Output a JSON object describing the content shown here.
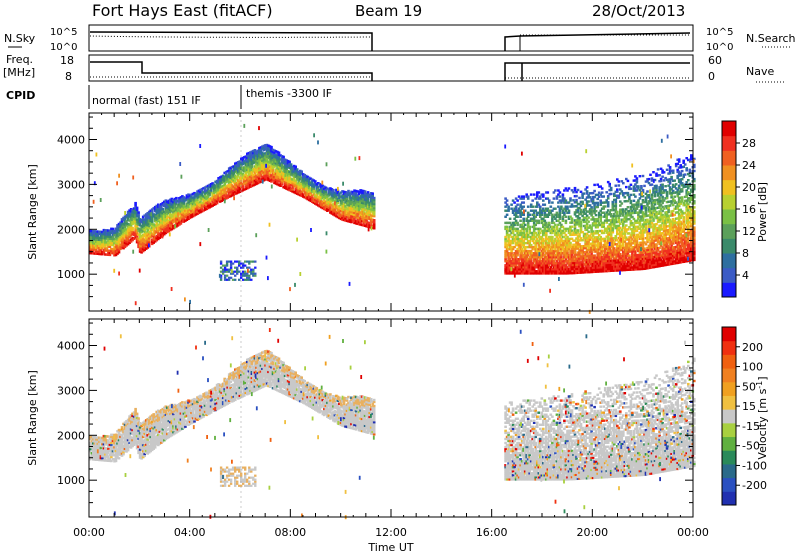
{
  "header": {
    "station": "Fort Hays East (fitACF)",
    "beam": "Beam 19",
    "date": "28/Oct/2013"
  },
  "status_panels": {
    "nsky_label": "N.Sky",
    "nsearch_label": "N.Search",
    "noise_ticks": [
      "10^5",
      "10^0"
    ],
    "noise_right_ticks": [
      "10^5",
      "10^0"
    ],
    "freq_label_1": "Freq.",
    "freq_label_2": "[MHz]",
    "freq_ticks": [
      "18",
      "8"
    ],
    "nave_label": "Nave",
    "nave_ticks": [
      "60",
      "0"
    ],
    "cpid_label": "CPID",
    "cpid_segments": [
      {
        "label": "normal (fast) 151 IF",
        "start_h": 0,
        "end_h": 6
      },
      {
        "label": "themis -3300 IF",
        "start_h": 6,
        "end_h": 11.3
      }
    ]
  },
  "axes": {
    "xlabel": "Time UT",
    "x_ticks": [
      "00:00",
      "04:00",
      "08:00",
      "12:00",
      "16:00",
      "20:00",
      "00:00"
    ],
    "y_ticks": [
      "1000",
      "2000",
      "3000",
      "4000"
    ],
    "ylabel": "Slant Range [km]"
  },
  "colorbars": {
    "power": {
      "label": "Power [dB]",
      "ticks": [
        "28",
        "24",
        "20",
        "16",
        "12",
        "8",
        "4"
      ],
      "colors": [
        "#1a1aff",
        "#3b5bc5",
        "#2e6fa0",
        "#3a8a6a",
        "#5ba05a",
        "#7ac045",
        "#b8d030",
        "#f0c020",
        "#f09020",
        "#f06020",
        "#f03020",
        "#e00000"
      ]
    },
    "velocity": {
      "label_1": "Velocity",
      "label_2": "[m s",
      "label_sup": "-1",
      "label_3": "]",
      "ticks": [
        "200",
        "100",
        "50",
        "15",
        "-15",
        "-50",
        "-100",
        "-200"
      ],
      "colors": [
        "#2030b0",
        "#2a50c0",
        "#2a6a8a",
        "#2a8a5a",
        "#60b040",
        "#a8d040",
        "#c8c8c8",
        "#f0c040",
        "#f0a020",
        "#f08020",
        "#f06010",
        "#f03010",
        "#e00000"
      ]
    }
  },
  "chart_data": [
    {
      "type": "heatmap",
      "title": "Power",
      "xlabel": "Time UT",
      "ylabel": "Slant Range [km]",
      "xlim_hours": [
        0,
        24
      ],
      "ylim_km": [
        180,
        4590
      ],
      "colorbar_label": "Power [dB]",
      "colorbar_ticks": [
        28,
        24,
        20,
        16,
        12,
        8,
        4
      ],
      "data_gaps_hours": [
        [
          11.3,
          16.5
        ]
      ],
      "echo_band_lower_edge_km": [
        {
          "t": 0.0,
          "km": 1450
        },
        {
          "t": 1.0,
          "km": 1400
        },
        {
          "t": 1.8,
          "km": 1800
        },
        {
          "t": 2.0,
          "km": 1450
        },
        {
          "t": 3.0,
          "km": 1900
        },
        {
          "t": 4.0,
          "km": 2250
        },
        {
          "t": 5.5,
          "km": 2700
        },
        {
          "t": 7.0,
          "km": 3100
        },
        {
          "t": 8.5,
          "km": 2700
        },
        {
          "t": 10.0,
          "km": 2200
        },
        {
          "t": 11.3,
          "km": 2000
        }
      ],
      "evening_band_km": [
        {
          "t": 16.5,
          "low": 1000,
          "high": 2700
        },
        {
          "t": 19.0,
          "low": 1000,
          "high": 2900
        },
        {
          "t": 22.0,
          "low": 1100,
          "high": 3200
        },
        {
          "t": 24.0,
          "low": 1300,
          "high": 3700
        }
      ]
    },
    {
      "type": "heatmap",
      "title": "Velocity",
      "xlabel": "Time UT",
      "ylabel": "Slant Range [km]",
      "xlim_hours": [
        0,
        24
      ],
      "ylim_km": [
        180,
        4590
      ],
      "colorbar_label": "Velocity [m s-1]",
      "colorbar_ticks": [
        200,
        100,
        50,
        15,
        -15,
        -50,
        -100,
        -200
      ],
      "data_gaps_hours": [
        [
          11.3,
          16.5
        ]
      ]
    }
  ]
}
